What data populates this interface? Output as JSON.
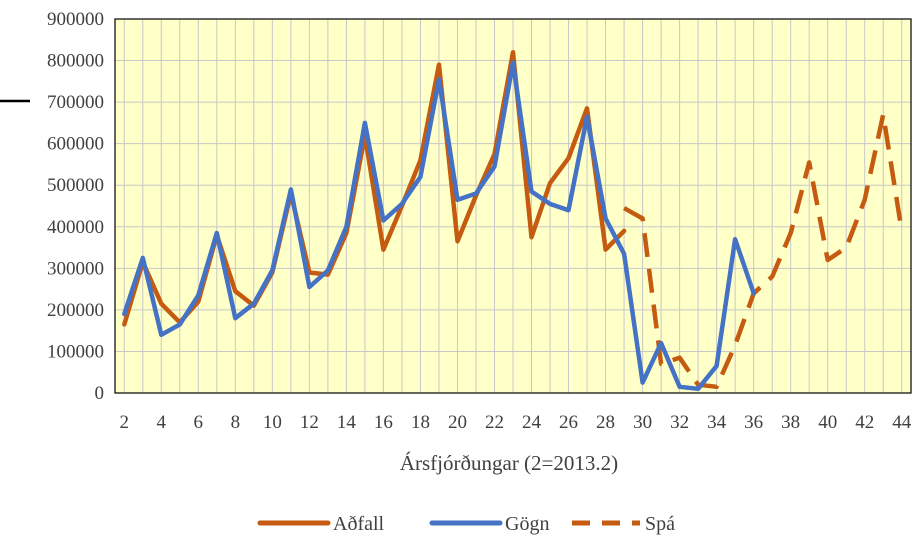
{
  "chart_data": {
    "type": "line",
    "xlabel": "Ársfjórðungar (2=2013.2)",
    "ylabel": "",
    "xlim": [
      1.5,
      44.5
    ],
    "ylim": [
      0,
      900000
    ],
    "x_ticks": [
      2,
      4,
      6,
      8,
      10,
      12,
      14,
      16,
      18,
      20,
      22,
      24,
      26,
      28,
      30,
      32,
      34,
      36,
      38,
      40,
      42,
      44
    ],
    "y_ticks": [
      0,
      100000,
      200000,
      300000,
      400000,
      500000,
      600000,
      700000,
      800000,
      900000
    ],
    "grid": true,
    "legend_position": "bottom",
    "background_color": "#ffffc8",
    "series": [
      {
        "name": "Aðfall",
        "color": "#c55a11",
        "dash": "solid",
        "x": [
          2,
          3,
          4,
          5,
          6,
          7,
          8,
          9,
          10,
          11,
          12,
          13,
          14,
          15,
          16,
          17,
          18,
          19,
          20,
          21,
          22,
          23,
          24,
          25,
          26,
          27,
          28,
          29
        ],
        "values": [
          165000,
          315000,
          215000,
          170000,
          220000,
          380000,
          245000,
          210000,
          290000,
          480000,
          290000,
          285000,
          385000,
          620000,
          345000,
          450000,
          560000,
          790000,
          365000,
          475000,
          575000,
          820000,
          375000,
          505000,
          565000,
          685000,
          345000,
          390000
        ]
      },
      {
        "name": "Gögn",
        "color": "#4472c4",
        "dash": "solid",
        "x": [
          2,
          3,
          4,
          5,
          6,
          7,
          8,
          9,
          10,
          11,
          12,
          13,
          14,
          15,
          16,
          17,
          18,
          19,
          20,
          21,
          22,
          23,
          24,
          25,
          26,
          27,
          28,
          29,
          30,
          31,
          32,
          33,
          34,
          35,
          36
        ],
        "values": [
          190000,
          325000,
          140000,
          165000,
          235000,
          385000,
          180000,
          215000,
          295000,
          490000,
          255000,
          295000,
          400000,
          650000,
          415000,
          455000,
          520000,
          755000,
          465000,
          480000,
          545000,
          795000,
          485000,
          455000,
          440000,
          665000,
          420000,
          335000,
          25000,
          120000,
          15000,
          10000,
          65000,
          370000,
          240000
        ]
      },
      {
        "name": "Spá",
        "color": "#c55a11",
        "dash": "dashed",
        "x": [
          29,
          30,
          31,
          32,
          33,
          34,
          35,
          36,
          37,
          38,
          39,
          40,
          41,
          42,
          43,
          44
        ],
        "values": [
          445000,
          420000,
          70000,
          85000,
          20000,
          15000,
          115000,
          240000,
          280000,
          385000,
          555000,
          320000,
          350000,
          465000,
          670000,
          390000
        ]
      }
    ]
  }
}
